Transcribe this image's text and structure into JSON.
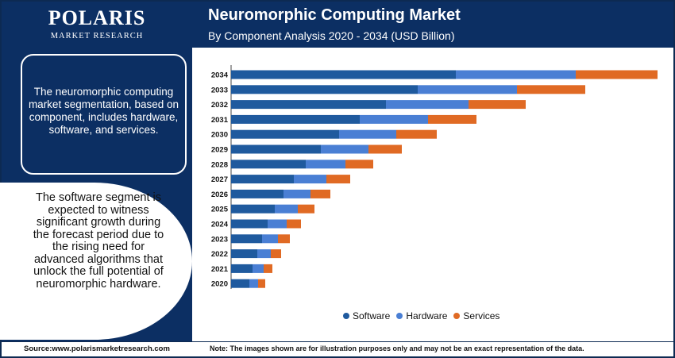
{
  "brand": {
    "name": "POLARIS",
    "tagline": "MARKET RESEARCH"
  },
  "header": {
    "title": "Neuromorphic Computing Market",
    "subtitle": "By Component Analysis 2020 - 2034 (USD Billion)"
  },
  "side": {
    "info_text": "The neuromorphic computing market segmentation, based on component, includes hardware, software, and services.",
    "highlight_text": "The software segment is expected to witness significant growth during the forecast period due to the rising need for advanced algorithms that unlock the full potential of neuromorphic hardware."
  },
  "footer": {
    "source": "Source:www.polarismarketresearch.com",
    "note": "Note: The images shown are for illustration purposes only and may not be an exact representation of the data."
  },
  "colors": {
    "software": "#1f5a9e",
    "hardware": "#4a7fd4",
    "services": "#e06a24",
    "navy": "#0c2f63"
  },
  "chart_data": {
    "type": "bar",
    "orientation": "horizontal",
    "stacked": true,
    "title": "Neuromorphic Computing Market",
    "subtitle": "By Component Analysis 2020 - 2034 (USD Billion)",
    "categories": [
      "2034",
      "2033",
      "2032",
      "2031",
      "2030",
      "2029",
      "2028",
      "2027",
      "2026",
      "2025",
      "2024",
      "2023",
      "2022",
      "2021",
      "2020"
    ],
    "series": [
      {
        "name": "Software",
        "color": "#1f5a9e",
        "values": [
          283,
          235,
          195,
          162,
          136,
          113,
          94,
          79,
          66,
          55,
          46,
          39,
          33,
          27,
          23
        ]
      },
      {
        "name": "Hardware",
        "color": "#4a7fd4",
        "values": [
          151,
          125,
          104,
          86,
          72,
          60,
          50,
          41,
          34,
          29,
          24,
          20,
          17,
          14,
          11
        ]
      },
      {
        "name": "Services",
        "color": "#e06a24",
        "values": [
          103,
          86,
          72,
          61,
          51,
          42,
          35,
          30,
          25,
          21,
          18,
          15,
          13,
          11,
          9
        ]
      }
    ],
    "xlim": [
      0,
      540
    ],
    "legend_position": "bottom",
    "grid": false
  }
}
